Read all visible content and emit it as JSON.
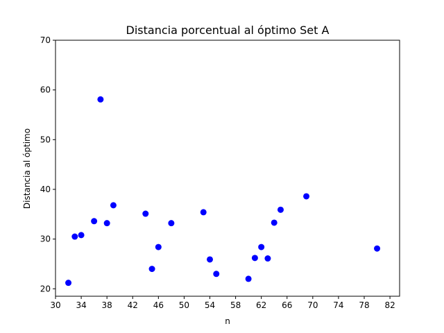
{
  "chart_data": {
    "type": "scatter",
    "title": "Distancia porcentual al óptimo Set A",
    "xlabel": "n",
    "ylabel": "Distancia al óptimo",
    "xlim": [
      30,
      83.5
    ],
    "ylim": [
      18.5,
      70
    ],
    "xticks": [
      30,
      34,
      38,
      42,
      46,
      50,
      54,
      58,
      62,
      66,
      70,
      74,
      78,
      82
    ],
    "yticks": [
      20,
      30,
      40,
      50,
      60,
      70
    ],
    "grid": false,
    "marker_color": "#0000ff",
    "series": [
      {
        "points": [
          {
            "x": 32,
            "y": 21.2
          },
          {
            "x": 33,
            "y": 30.5
          },
          {
            "x": 34,
            "y": 30.8
          },
          {
            "x": 36,
            "y": 33.6
          },
          {
            "x": 37,
            "y": 58.1
          },
          {
            "x": 38,
            "y": 33.2
          },
          {
            "x": 39,
            "y": 36.8
          },
          {
            "x": 44,
            "y": 35.1
          },
          {
            "x": 45,
            "y": 24.0
          },
          {
            "x": 46,
            "y": 28.4
          },
          {
            "x": 48,
            "y": 33.2
          },
          {
            "x": 53,
            "y": 35.4
          },
          {
            "x": 54,
            "y": 25.9
          },
          {
            "x": 55,
            "y": 23.0
          },
          {
            "x": 60,
            "y": 22.0
          },
          {
            "x": 61,
            "y": 26.2
          },
          {
            "x": 62,
            "y": 28.4
          },
          {
            "x": 63,
            "y": 26.1
          },
          {
            "x": 64,
            "y": 33.3
          },
          {
            "x": 65,
            "y": 35.9
          },
          {
            "x": 69,
            "y": 38.6
          },
          {
            "x": 80,
            "y": 28.1
          }
        ]
      }
    ]
  }
}
